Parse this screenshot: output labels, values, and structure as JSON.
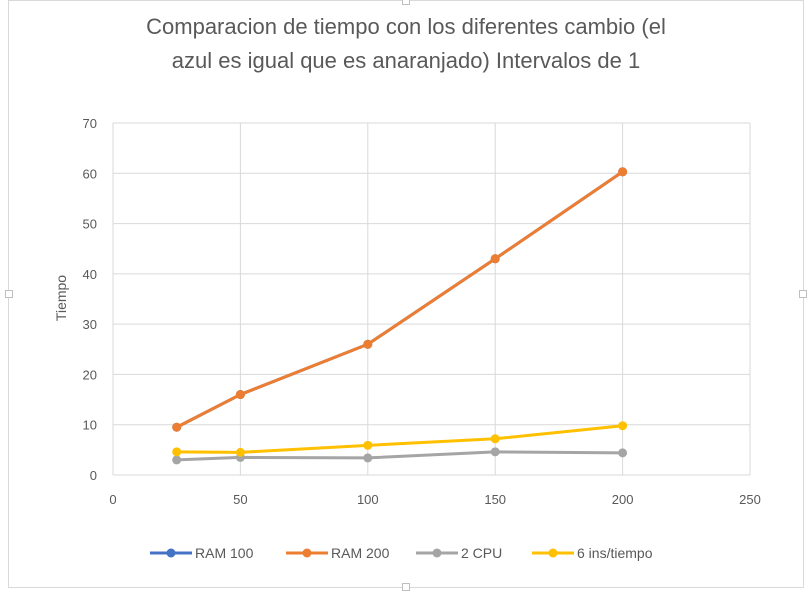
{
  "chart_data": {
    "type": "line",
    "title_lines": [
      "Comparacion de tiempo con los diferentes cambio (el",
      "azul es igual que es anaranjado) Intervalos de 1"
    ],
    "xlabel": "",
    "ylabel": "Tiempo",
    "xlim": [
      0,
      250
    ],
    "ylim": [
      0,
      70
    ],
    "x_ticks": [
      0,
      50,
      100,
      150,
      200,
      250
    ],
    "y_ticks": [
      0,
      10,
      20,
      30,
      40,
      50,
      60,
      70
    ],
    "grid": true,
    "legend_position": "bottom",
    "series": [
      {
        "name": "RAM 100",
        "color": "#4472C4",
        "x": [
          25,
          50,
          100,
          150,
          200
        ],
        "y": [
          9.5,
          16,
          26,
          43,
          60.3
        ]
      },
      {
        "name": "RAM 200",
        "color": "#ED7D31",
        "x": [
          25,
          50,
          100,
          150,
          200
        ],
        "y": [
          9.5,
          16,
          26,
          43,
          60.3
        ]
      },
      {
        "name": "2 CPU",
        "color": "#A5A5A5",
        "x": [
          25,
          50,
          100,
          150,
          200
        ],
        "y": [
          3.0,
          3.5,
          3.4,
          4.6,
          4.4
        ]
      },
      {
        "name": "6 ins/tiempo",
        "color": "#FFC000",
        "x": [
          25,
          50,
          100,
          150,
          200
        ],
        "y": [
          4.6,
          4.5,
          5.9,
          7.2,
          9.8
        ]
      }
    ]
  }
}
